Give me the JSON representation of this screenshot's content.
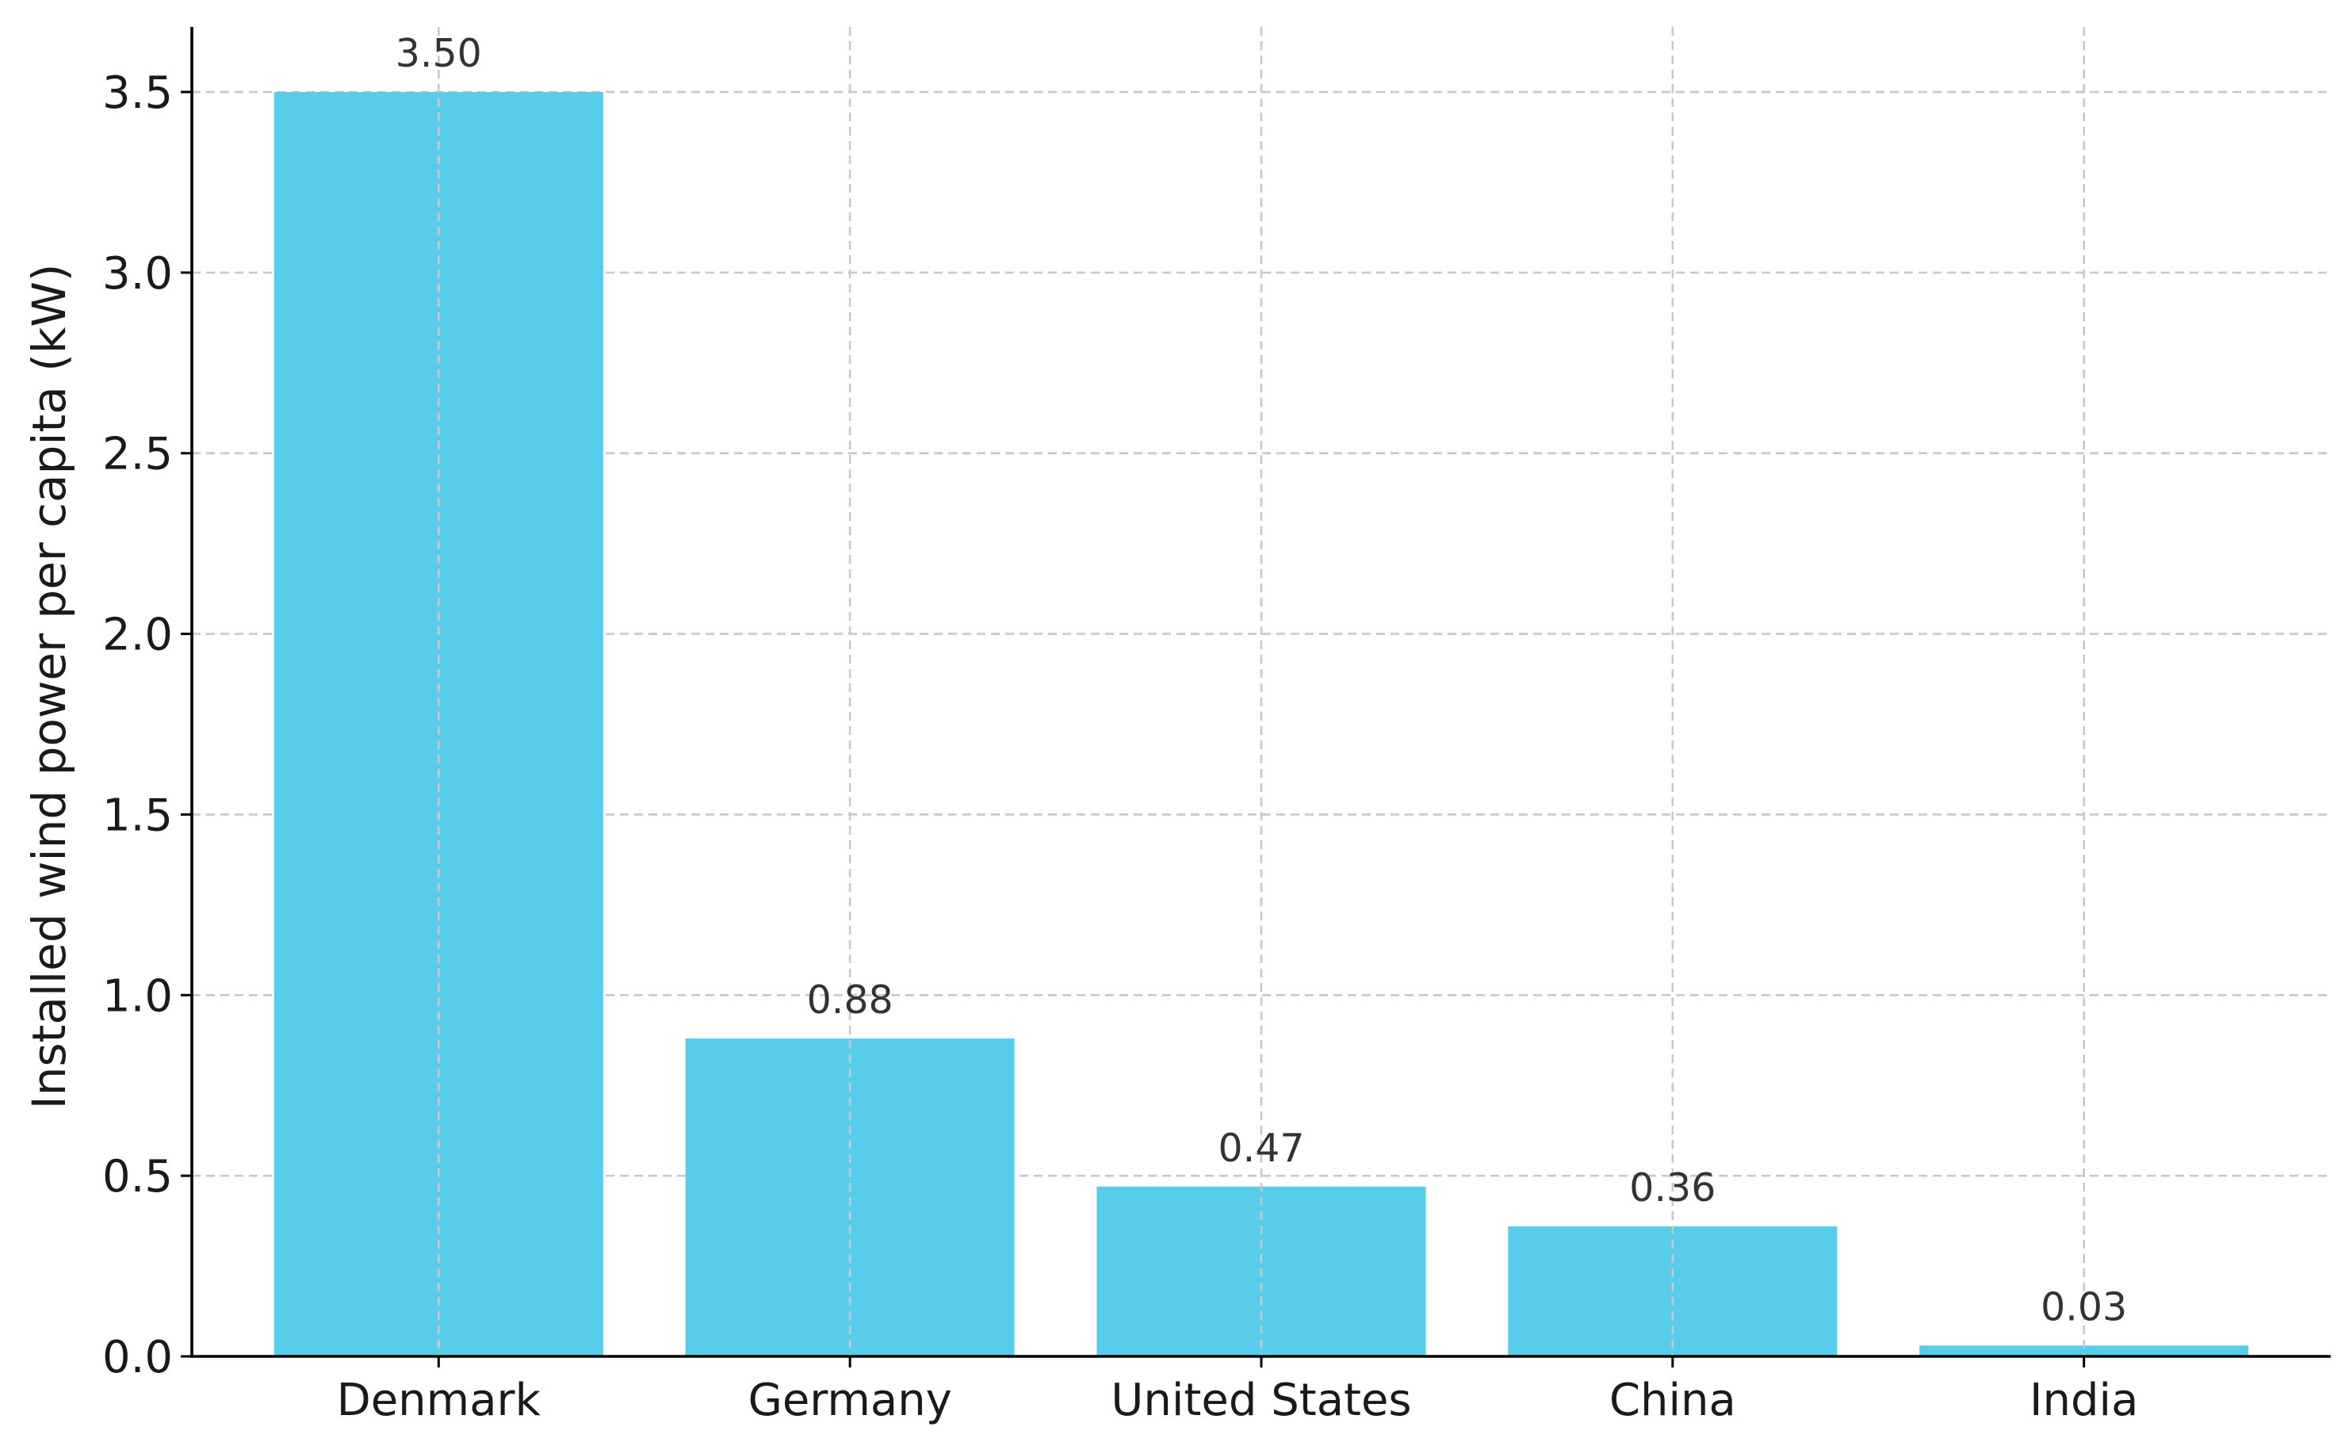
{
  "chart_data": {
    "type": "bar",
    "categories": [
      "Denmark",
      "Germany",
      "United States",
      "China",
      "India"
    ],
    "values": [
      3.5,
      0.88,
      0.47,
      0.36,
      0.03
    ],
    "data_labels": [
      "3.50",
      "0.88",
      "0.47",
      "0.36",
      "0.03"
    ],
    "title": "",
    "xlabel": "",
    "ylabel": "Installed wind power per capita (kW)",
    "ylim": [
      0,
      3.68
    ],
    "y_ticks": [
      0.0,
      0.5,
      1.0,
      1.5,
      2.0,
      2.5,
      3.0,
      3.5
    ],
    "y_tick_labels": [
      "0.0",
      "0.5",
      "1.0",
      "1.5",
      "2.0",
      "2.5",
      "3.0",
      "3.5"
    ],
    "grid": true,
    "legend": "none",
    "colors": {
      "bar": "#58cdeb",
      "grid": "#c8c8c8",
      "axis": "#000000",
      "text": "#1a1a1a",
      "data_label": "#333333"
    }
  }
}
